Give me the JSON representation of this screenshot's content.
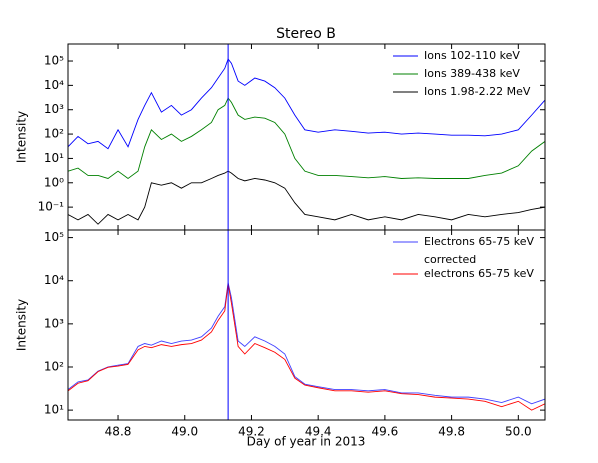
{
  "chart_data": [
    {
      "type": "line",
      "title": "Stereo B",
      "ylabel": "Intensity",
      "log_y": true,
      "legend": "upper right",
      "xlim": [
        48.65,
        50.08
      ],
      "ylim": [
        0.0115,
        500000
      ],
      "yticks": [
        {
          "value": 0.1,
          "label": "10⁻¹"
        },
        {
          "value": 1,
          "label": "10⁰"
        },
        {
          "value": 10,
          "label": "10¹"
        },
        {
          "value": 100,
          "label": "10²"
        },
        {
          "value": 1000,
          "label": "10³"
        },
        {
          "value": 10000,
          "label": "10⁴"
        },
        {
          "value": 100000,
          "label": "10⁵"
        }
      ],
      "vline": 49.13,
      "vline_color": "#0000ff",
      "x": [
        48.65,
        48.68,
        48.71,
        48.74,
        48.77,
        48.8,
        48.83,
        48.86,
        48.88,
        48.9,
        48.93,
        48.96,
        48.99,
        49.02,
        49.05,
        49.08,
        49.1,
        49.12,
        49.13,
        49.14,
        49.16,
        49.18,
        49.21,
        49.24,
        49.27,
        49.3,
        49.33,
        49.36,
        49.4,
        49.45,
        49.5,
        49.55,
        49.6,
        49.65,
        49.7,
        49.75,
        49.8,
        49.85,
        49.9,
        49.95,
        50.0,
        50.04,
        50.08
      ],
      "series": [
        {
          "name": "Ions 102-110 keV",
          "color": "#0000ff",
          "values": [
            30,
            80,
            40,
            50,
            25,
            150,
            30,
            400,
            1500,
            5000,
            800,
            1500,
            600,
            1000,
            3000,
            8000,
            20000,
            50000,
            120000,
            80000,
            15000,
            10000,
            20000,
            15000,
            8000,
            3000,
            600,
            150,
            120,
            150,
            130,
            110,
            120,
            100,
            110,
            100,
            90,
            90,
            85,
            100,
            150,
            600,
            2500
          ]
        },
        {
          "name": "Ions 389-438 keV",
          "color": "#008000",
          "values": [
            3,
            4,
            2,
            2,
            1.5,
            3,
            1.5,
            3,
            30,
            150,
            60,
            100,
            50,
            80,
            150,
            300,
            1000,
            1500,
            3000,
            2000,
            600,
            400,
            500,
            450,
            300,
            100,
            10,
            3,
            2,
            2,
            1.8,
            1.6,
            1.8,
            1.5,
            1.6,
            1.5,
            1.5,
            1.5,
            2,
            2.5,
            5,
            20,
            50
          ]
        },
        {
          "name": "Ions 1.98-2.22 MeV",
          "color": "#000000",
          "values": [
            0.05,
            0.03,
            0.05,
            0.02,
            0.05,
            0.03,
            0.05,
            0.03,
            0.1,
            1,
            0.8,
            1,
            0.6,
            1,
            1,
            1.5,
            2,
            2.5,
            3,
            2.5,
            1.5,
            1.2,
            1.5,
            1.3,
            1,
            0.6,
            0.15,
            0.05,
            0.04,
            0.03,
            0.05,
            0.03,
            0.04,
            0.03,
            0.05,
            0.04,
            0.03,
            0.05,
            0.04,
            0.05,
            0.06,
            0.08,
            0.1
          ]
        }
      ]
    },
    {
      "type": "line",
      "ylabel": "Intensity",
      "xlabel": "Day of year in 2013",
      "log_y": true,
      "legend": "upper right",
      "xlim": [
        48.65,
        50.08
      ],
      "ylim": [
        5.9,
        150000
      ],
      "xticks": [
        48.8,
        {
          "value": 49,
          "label": "49.0"
        },
        49.2,
        49.4,
        49.6,
        49.8,
        {
          "value": 50,
          "label": "50.0"
        }
      ],
      "yticks": [
        {
          "value": 10,
          "label": "10¹"
        },
        {
          "value": 100,
          "label": "10²"
        },
        {
          "value": 1000,
          "label": "10³"
        },
        {
          "value": 10000,
          "label": "10⁴"
        },
        {
          "value": 100000,
          "label": "10⁵"
        }
      ],
      "vline": 49.13,
      "vline_color": "#0000ff",
      "x": [
        48.65,
        48.68,
        48.71,
        48.74,
        48.77,
        48.8,
        48.83,
        48.86,
        48.88,
        48.9,
        48.93,
        48.96,
        48.99,
        49.02,
        49.05,
        49.08,
        49.1,
        49.12,
        49.13,
        49.14,
        49.16,
        49.18,
        49.21,
        49.24,
        49.27,
        49.3,
        49.33,
        49.36,
        49.4,
        49.45,
        49.5,
        49.55,
        49.6,
        49.65,
        49.7,
        49.75,
        49.8,
        49.85,
        49.9,
        49.95,
        50.0,
        50.04,
        50.08
      ],
      "series": [
        {
          "name": "Electrons 65-75 keV",
          "color": "#4040ff",
          "values": [
            30,
            45,
            50,
            80,
            100,
            110,
            120,
            300,
            350,
            320,
            400,
            350,
            400,
            420,
            500,
            800,
            1500,
            2500,
            9000,
            4000,
            400,
            300,
            500,
            400,
            300,
            200,
            60,
            40,
            35,
            30,
            30,
            28,
            30,
            25,
            25,
            22,
            20,
            20,
            18,
            15,
            20,
            14,
            18
          ]
        },
        {
          "name": "corrected\nelectrons 65-75 keV",
          "color": "#ff0000",
          "values": [
            28,
            42,
            48,
            78,
            98,
            105,
            115,
            250,
            300,
            280,
            330,
            300,
            330,
            350,
            420,
            650,
            1200,
            2000,
            8500,
            3000,
            300,
            200,
            350,
            280,
            220,
            150,
            55,
            38,
            33,
            28,
            28,
            26,
            28,
            24,
            23,
            20,
            19,
            18,
            16,
            12,
            16,
            10,
            14
          ]
        }
      ]
    }
  ]
}
